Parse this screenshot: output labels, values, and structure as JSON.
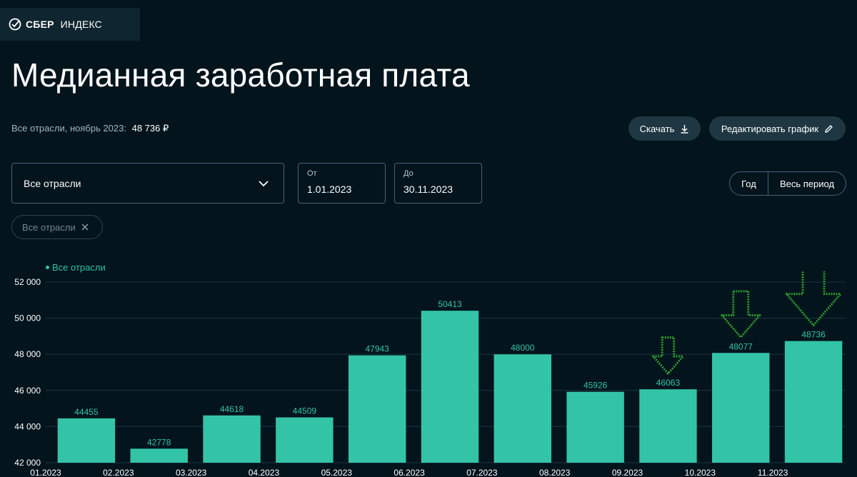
{
  "brand": {
    "bold": "СБЕР",
    "thin": "ИНДЕКС",
    "logo_icon": "sber-check-circle-icon"
  },
  "page": {
    "title": "Медианная заработная плата"
  },
  "summary": {
    "label": "Все отрасли, ноябрь 2023:",
    "value": "48 736 ₽"
  },
  "toolbar": {
    "download_label": "Скачать",
    "download_icon": "download-icon",
    "edit_label": "Редактировать график",
    "edit_icon": "pencil-icon"
  },
  "filters": {
    "industry_selected": "Все отрасли",
    "from_label": "От",
    "from_value": "1.01.2023",
    "to_label": "До",
    "to_value": "30.11.2023",
    "period_year": "Год",
    "period_all": "Весь период",
    "active_chip": "Все отрасли"
  },
  "colors": {
    "background": "#03141c",
    "bar": "#33c4a8",
    "accent": "#2fc4a7",
    "annotation_arrow": "#2e9e2e"
  },
  "chart_data": {
    "type": "bar",
    "title": "",
    "xlabel": "",
    "ylabel": "",
    "categories": [
      "01.2023",
      "02.2023",
      "03.2023",
      "04.2023",
      "05.2023",
      "06.2023",
      "07.2023",
      "08.2023",
      "09.2023",
      "10.2023",
      "11.2023"
    ],
    "series": [
      {
        "name": "Все отрасли",
        "values": [
          44455,
          42778,
          44618,
          44509,
          47943,
          50413,
          48000,
          45926,
          46063,
          48077,
          48736
        ]
      }
    ],
    "ylim": [
      42000,
      52000
    ],
    "yticks": [
      42000,
      44000,
      46000,
      48000,
      50000,
      52000
    ],
    "ytick_labels": [
      "42 000",
      "44 000",
      "46 000",
      "48 000",
      "50 000",
      "52 000"
    ],
    "grid": true,
    "legend": "top-left",
    "annotations": [
      {
        "type": "down-arrow",
        "category": "09.2023"
      },
      {
        "type": "down-arrow",
        "category": "10.2023"
      },
      {
        "type": "down-arrow",
        "category": "11.2023"
      }
    ]
  }
}
